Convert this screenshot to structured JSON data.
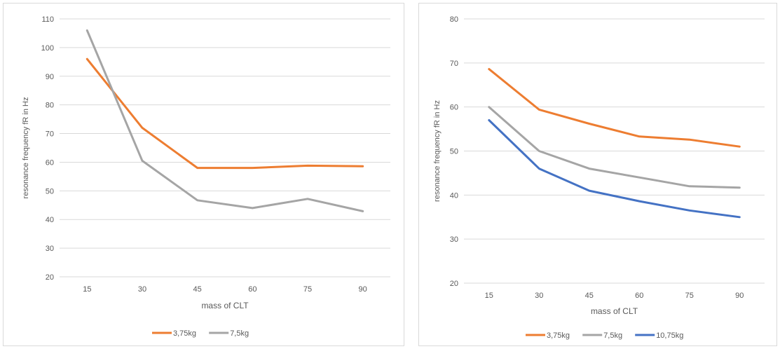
{
  "chart_data": [
    {
      "type": "line",
      "title": "",
      "xlabel": "mass of CLT",
      "ylabel": "resonance frequency fR in Hz",
      "categories": [
        "15",
        "30",
        "45",
        "60",
        "75",
        "90"
      ],
      "yticks": [
        20,
        30,
        40,
        50,
        60,
        70,
        80,
        90,
        100,
        110
      ],
      "ylim": [
        20,
        110
      ],
      "grid": true,
      "legend_position": "bottom",
      "series": [
        {
          "name": "3,75kg",
          "color": "#ed7d31",
          "values": [
            96,
            72,
            58,
            58,
            58.8,
            58.6
          ]
        },
        {
          "name": "7,5kg",
          "color": "#a5a5a5",
          "values": [
            106,
            60.5,
            46.7,
            44,
            47.2,
            42.9
          ]
        }
      ]
    },
    {
      "type": "line",
      "title": "",
      "xlabel": "mass of CLT",
      "ylabel": "resonance frequency fR in Hz",
      "categories": [
        "15",
        "30",
        "45",
        "60",
        "75",
        "90"
      ],
      "yticks": [
        20,
        30,
        40,
        50,
        60,
        70,
        80
      ],
      "ylim": [
        20,
        80
      ],
      "grid": true,
      "legend_position": "bottom",
      "series": [
        {
          "name": "3,75kg",
          "color": "#ed7d31",
          "values": [
            68.6,
            59.4,
            56.2,
            53.3,
            52.6,
            51
          ]
        },
        {
          "name": "7,5kg",
          "color": "#a5a5a5",
          "values": [
            60,
            50,
            46,
            44,
            42,
            41.7
          ]
        },
        {
          "name": "10,75kg",
          "color": "#4472c4",
          "values": [
            57,
            46,
            41,
            38.6,
            36.5,
            35
          ]
        }
      ]
    }
  ]
}
